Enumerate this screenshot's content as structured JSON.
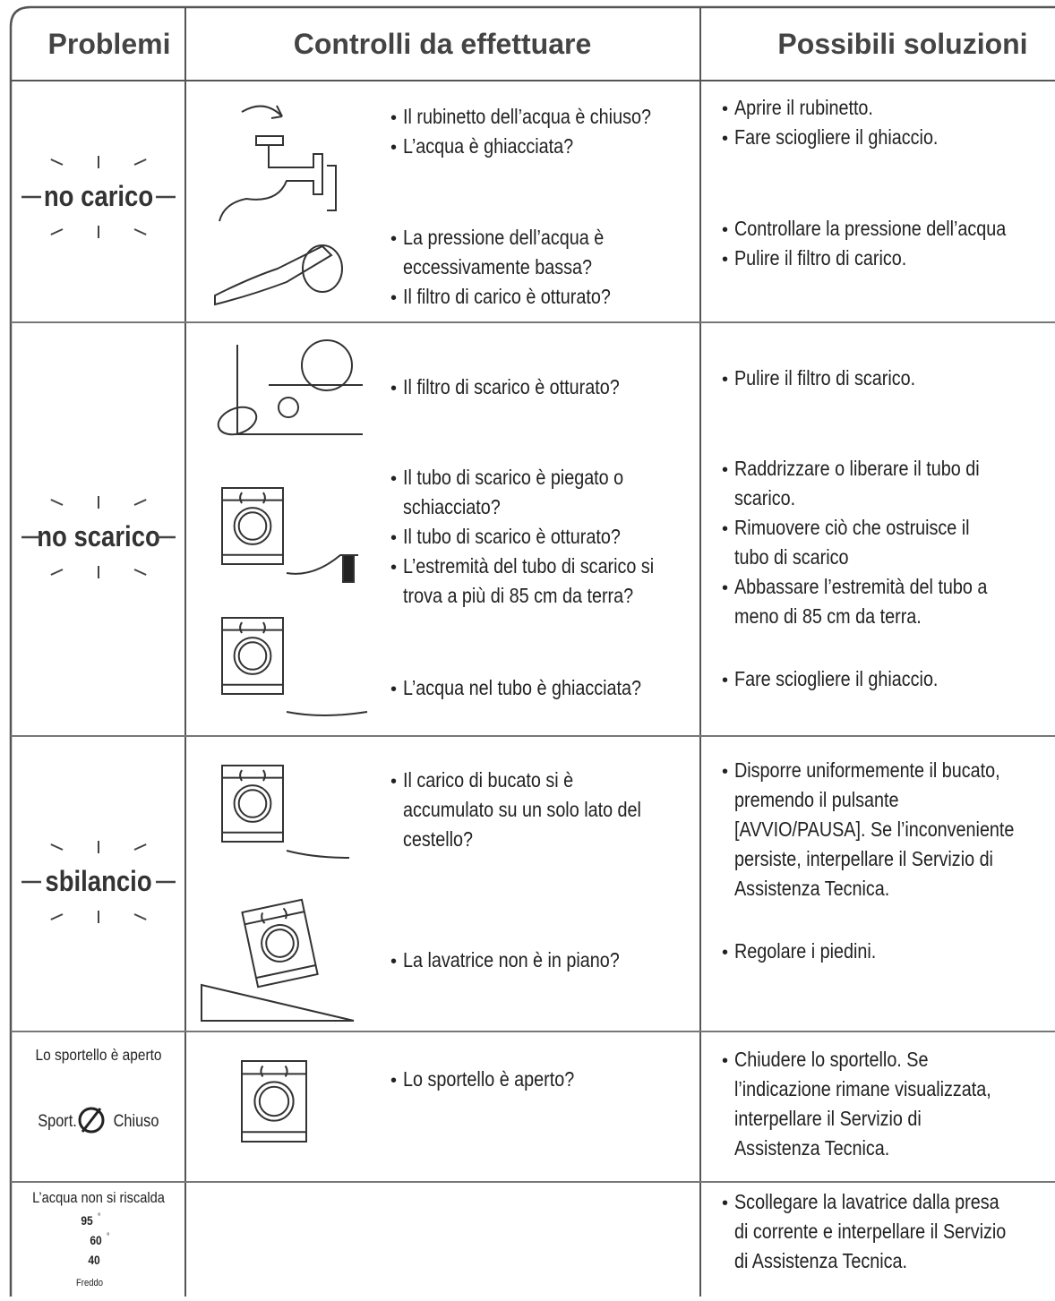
{
  "header": {
    "problems": "Problemi",
    "checks": "Controlli da effettuare",
    "solutions": "Possibili soluzioni"
  },
  "rows": [
    {
      "problem": "no carico",
      "groups": [
        {
          "checks": [
            [
              "Il rubinetto dell’acqua è chiuso?"
            ],
            [
              "L’acqua è ghiacciata?"
            ]
          ],
          "solutions": [
            [
              "Aprire il rubinetto."
            ],
            [
              "Fare sciogliere il ghiaccio."
            ]
          ]
        },
        {
          "checks": [
            [
              "La pressione dell’acqua è",
              "eccessivamente bassa?"
            ],
            [
              "Il filtro di carico è otturato?"
            ]
          ],
          "solutions": [
            [
              "Controllare la pressione dell’acqua"
            ],
            [
              "Pulire il filtro di carico."
            ]
          ]
        }
      ]
    },
    {
      "problem": "no scarico",
      "groups": [
        {
          "checks": [
            [
              "Il filtro di scarico è otturato?"
            ]
          ],
          "solutions": [
            [
              "Pulire il filtro di scarico."
            ]
          ]
        },
        {
          "checks": [
            [
              "Il tubo di scarico è piegato o",
              "schiacciato?"
            ],
            [
              "Il tubo di scarico è otturato?"
            ],
            [
              "L’estremità del tubo di scarico si",
              "trova a più di 85 cm da terra?"
            ]
          ],
          "solutions": [
            [
              "Raddrizzare o liberare il tubo di",
              "scarico."
            ],
            [
              "Rimuovere ciò che ostruisce il",
              "tubo di scarico"
            ],
            [
              "Abbassare l’estremità del tubo a",
              "meno di 85 cm da terra."
            ]
          ]
        },
        {
          "checks": [
            [
              "L’acqua nel tubo è ghiacciata?"
            ]
          ],
          "solutions": [
            [
              "Fare sciogliere il ghiaccio."
            ]
          ]
        }
      ]
    },
    {
      "problem": "sbilancio",
      "groups": [
        {
          "checks": [
            [
              "Il carico di bucato si è",
              "accumulato su un solo lato del",
              "cestello?"
            ]
          ],
          "solutions": [
            [
              "Disporre uniformemente il bucato,",
              "premendo il pulsante",
              "[AVVIO/PAUSA]. Se l’inconveniente",
              "persiste, interpellare il Servizio di",
              "Assistenza Tecnica."
            ]
          ]
        },
        {
          "checks": [
            [
              "La lavatrice non è in piano?"
            ]
          ],
          "solutions": [
            [
              "Regolare i piedini."
            ]
          ]
        }
      ]
    },
    {
      "problem": "Lo sportello è aperto",
      "display": [
        "Sport.",
        "Chiuso"
      ],
      "groups": [
        {
          "checks": [
            [
              "Lo sportello è aperto?"
            ]
          ],
          "solutions": [
            [
              "Chiudere lo sportello. Se",
              "l’indicazione rimane visualizzata,",
              "interpellare il Servizio di",
              "Assistenza Tecnica."
            ]
          ]
        }
      ]
    },
    {
      "problem": "L’acqua non si riscalda",
      "display": [
        "95",
        "60",
        "40",
        "Freddo"
      ],
      "degree": "°",
      "groups": [
        {
          "checks": [],
          "solutions": [
            [
              "Scollegare la lavatrice dalla presa",
              "di corrente e interpellare il Servizio",
              "di Assistenza Tecnica."
            ]
          ]
        }
      ]
    }
  ]
}
